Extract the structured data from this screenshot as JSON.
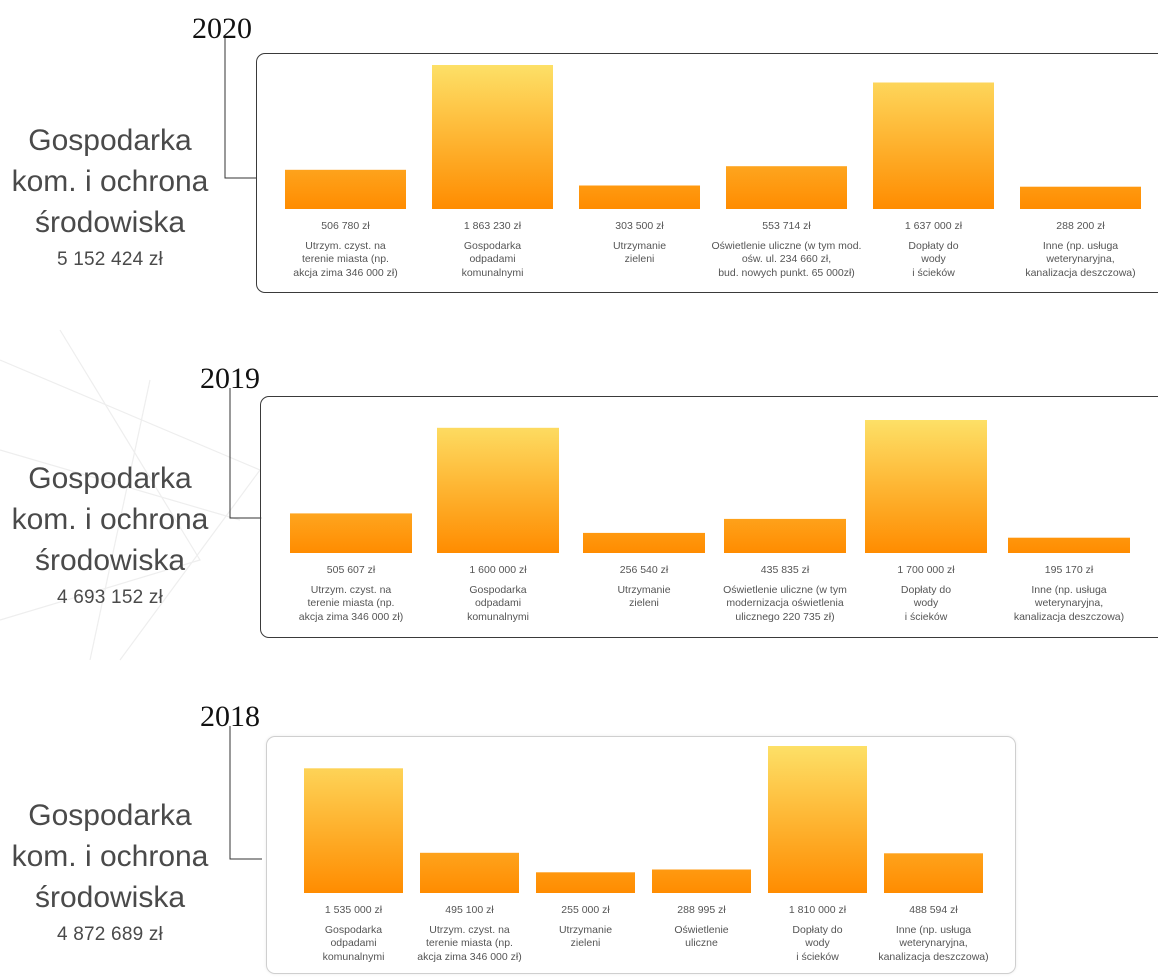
{
  "chart_data": [
    {
      "type": "bar",
      "title": "2020",
      "category_group": "Gospodarka kom. i ochrona środowiska",
      "total_label": "5 152 424 zł",
      "categories": [
        "Utrzym. czyst. na\nterenie miasta (np.\nakcja zima 346 000 zł)",
        "Gospodarka\nodpadami\nkomunalnymi",
        "Utrzymanie\nzieleni",
        "Oświetlenie uliczne (w tym mod.\nośw. ul. 234 660 zł,\nbud. nowych punkt. 65 000zł)",
        "Dopłaty do\nwody\ni ścieków",
        "Inne (np. usługa\nweterynaryjna,\nkanalizacja deszczowa)"
      ],
      "values": [
        506780,
        1863230,
        303500,
        553714,
        1637000,
        288200
      ],
      "value_labels": [
        "506 780 zł",
        "1 863 230 zł",
        "303 500 zł",
        "553 714 zł",
        "1 637 000 zł",
        "288 200 zł"
      ]
    },
    {
      "type": "bar",
      "title": "2019",
      "category_group": "Gospodarka kom. i ochrona środowiska",
      "total_label": "4 693 152 zł",
      "categories": [
        "Utrzym. czyst. na\nterenie miasta (np.\nakcja zima 346 000 zł)",
        "Gospodarka\nodpadami\nkomunalnymi",
        "Utrzymanie\nzieleni",
        "Oświetlenie uliczne (w tym\nmodernizacja oświetlenia\nulicznego 220 735 zł)",
        "Dopłaty do\nwody\ni ścieków",
        "Inne (np. usługa\nweterynaryjna,\nkanalizacja deszczowa)"
      ],
      "values": [
        505607,
        1600000,
        256540,
        435835,
        1700000,
        195170
      ],
      "value_labels": [
        "505 607 zł",
        "1 600 000 zł",
        "256 540 zł",
        "435 835 zł",
        "1 700 000 zł",
        "195 170 zł"
      ]
    },
    {
      "type": "bar",
      "title": "2018",
      "category_group": "Gospodarka kom. i ochrona środowiska",
      "total_label": "4 872 689 zł",
      "categories": [
        "Gospodarka\nodpadami\nkomunalnymi",
        "Utrzym. czyst. na\nterenie miasta (np.\nakcja zima 346 000 zł)",
        "Utrzymanie\nzieleni",
        "Oświetlenie\nuliczne",
        "Dopłaty do\nwody\ni ścieków",
        "Inne (np. usługa\nweterynaryjna,\nkanalizacja deszczowa)"
      ],
      "values": [
        1535000,
        495100,
        255000,
        288995,
        1810000,
        488594
      ],
      "value_labels": [
        "1 535 000 zł",
        "495 100 zł",
        "255 000 zł",
        "288 995 zł",
        "1 810 000 zł",
        "488 594 zł"
      ]
    }
  ],
  "side_label": {
    "line1": "Gospodarka",
    "line2": "kom. i ochrona",
    "line3": "środowiska"
  },
  "colors": {
    "bar_top": "#fde067",
    "bar_bottom": "#ff8c00",
    "frame": "#3a3a3a"
  }
}
